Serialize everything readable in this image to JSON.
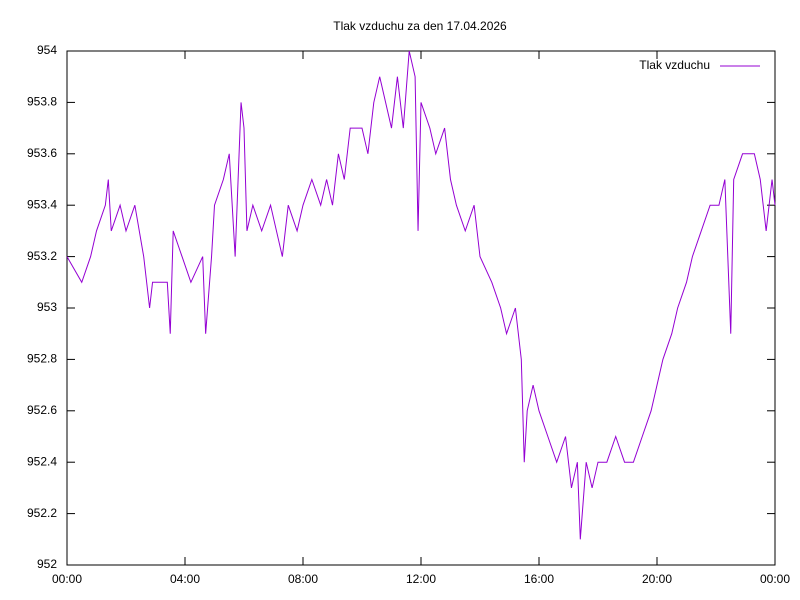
{
  "chart_data": {
    "type": "line",
    "title": "Tlak vzduchu za den 17.04.2026",
    "xlim": [
      0,
      24
    ],
    "xticks": [
      {
        "value": 0,
        "label": "00:00"
      },
      {
        "value": 4,
        "label": "04:00"
      },
      {
        "value": 8,
        "label": "08:00"
      },
      {
        "value": 12,
        "label": "12:00"
      },
      {
        "value": 16,
        "label": "16:00"
      },
      {
        "value": 20,
        "label": "20:00"
      },
      {
        "value": 24,
        "label": "00:00"
      }
    ],
    "ylim": [
      952,
      954
    ],
    "yticks": [
      952,
      952.2,
      952.4,
      952.6,
      952.8,
      953,
      953.2,
      953.4,
      953.6,
      953.8,
      954
    ],
    "legend": "upper right",
    "x": [
      0,
      0.5,
      0.8,
      1,
      1.3,
      1.4,
      1.5,
      1.8,
      2,
      2.3,
      2.6,
      2.8,
      2.9,
      3.4,
      3.5,
      3.6,
      3.9,
      4.2,
      4.6,
      4.7,
      4.9,
      5,
      5.3,
      5.5,
      5.7,
      5.9,
      6,
      6.1,
      6.3,
      6.6,
      6.9,
      7.3,
      7.5,
      7.8,
      8,
      8.3,
      8.6,
      8.8,
      9,
      9.2,
      9.4,
      9.6,
      10,
      10.2,
      10.4,
      10.6,
      10.8,
      11,
      11.2,
      11.4,
      11.6,
      11.8,
      11.9,
      12,
      12.3,
      12.5,
      12.8,
      13,
      13.2,
      13.5,
      13.8,
      14,
      14.4,
      14.7,
      14.9,
      15.2,
      15.4,
      15.5,
      15.6,
      15.8,
      16,
      16.3,
      16.6,
      16.9,
      17.1,
      17.3,
      17.4,
      17.6,
      17.8,
      18,
      18.3,
      18.6,
      18.9,
      19.2,
      19.5,
      19.8,
      20,
      20.2,
      20.5,
      20.7,
      21,
      21.2,
      21.5,
      21.8,
      22.1,
      22.3,
      22.5,
      22.6,
      22.9,
      23.3,
      23.5,
      23.7,
      23.9,
      24
    ],
    "series": [
      {
        "name": "Tlak vzduchu",
        "color": "#9400d3",
        "values": [
          953.2,
          953.1,
          953.2,
          953.3,
          953.4,
          953.5,
          953.3,
          953.4,
          953.3,
          953.4,
          953.2,
          953.0,
          953.1,
          953.1,
          952.9,
          953.3,
          953.2,
          953.1,
          953.2,
          952.9,
          953.2,
          953.4,
          953.5,
          953.6,
          953.2,
          953.8,
          953.7,
          953.3,
          953.4,
          953.3,
          953.4,
          953.2,
          953.4,
          953.3,
          953.4,
          953.5,
          953.4,
          953.5,
          953.4,
          953.6,
          953.5,
          953.7,
          953.7,
          953.6,
          953.8,
          953.9,
          953.8,
          953.7,
          953.9,
          953.7,
          954.0,
          953.9,
          953.3,
          953.8,
          953.7,
          953.6,
          953.7,
          953.5,
          953.4,
          953.3,
          953.4,
          953.2,
          953.1,
          953.0,
          952.9,
          953.0,
          952.8,
          952.4,
          952.6,
          952.7,
          952.6,
          952.5,
          952.4,
          952.5,
          952.3,
          952.4,
          952.1,
          952.4,
          952.3,
          952.4,
          952.4,
          952.5,
          952.4,
          952.4,
          952.5,
          952.6,
          952.7,
          952.8,
          952.9,
          953.0,
          953.1,
          953.2,
          953.3,
          953.4,
          953.4,
          953.5,
          952.9,
          953.5,
          953.6,
          953.6,
          953.5,
          953.3,
          953.5,
          953.4
        ]
      }
    ]
  }
}
